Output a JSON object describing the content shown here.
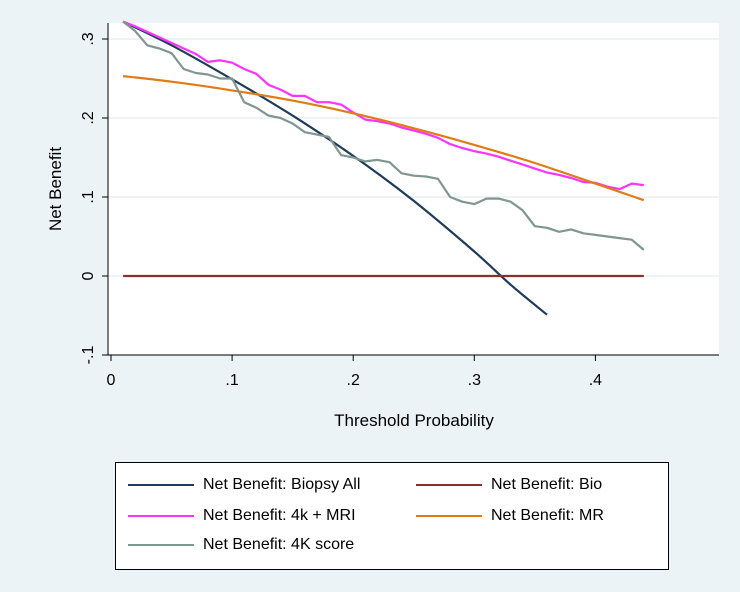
{
  "chart_data": {
    "type": "line",
    "title": "",
    "xlabel": "Threshold Probability",
    "ylabel": "Net Benefit",
    "xlim": [
      0,
      0.5
    ],
    "ylim": [
      -0.1,
      0.33
    ],
    "x_ticks": [
      0,
      0.1,
      0.2,
      0.3,
      0.4
    ],
    "x_tick_labels": [
      "0",
      ".1",
      ".2",
      ".3",
      ".4"
    ],
    "y_ticks": [
      -0.1,
      0,
      0.1,
      0.2,
      0.3
    ],
    "y_tick_labels": [
      "-.1",
      "0",
      ".1",
      ".2",
      ".3"
    ],
    "grid": "horizontal",
    "legend_position": "bottom",
    "series": [
      {
        "name": "Net Benefit: Biopsy All",
        "color": "#1f3b5a",
        "x": [
          0.01,
          0.05,
          0.1,
          0.15,
          0.2,
          0.25,
          0.3,
          0.33,
          0.36
        ],
        "y": [
          0.322,
          0.292,
          0.249,
          0.203,
          0.152,
          0.095,
          0.031,
          -0.011,
          -0.049
        ]
      },
      {
        "name": "Net Benefit: Bio",
        "color": "#8b2e2e",
        "x": [
          0.01,
          0.44
        ],
        "y": [
          0,
          0
        ]
      },
      {
        "name": "Net Benefit: 4k + MRI",
        "color": "#ff33ff",
        "x": [
          0.01,
          0.02,
          0.03,
          0.04,
          0.05,
          0.06,
          0.07,
          0.08,
          0.09,
          0.1,
          0.11,
          0.12,
          0.13,
          0.14,
          0.15,
          0.16,
          0.17,
          0.18,
          0.19,
          0.2,
          0.21,
          0.22,
          0.23,
          0.24,
          0.25,
          0.26,
          0.27,
          0.28,
          0.29,
          0.3,
          0.31,
          0.32,
          0.33,
          0.34,
          0.35,
          0.36,
          0.37,
          0.38,
          0.39,
          0.4,
          0.41,
          0.42,
          0.43,
          0.44
        ],
        "y": [
          0.322,
          0.316,
          0.309,
          0.302,
          0.295,
          0.288,
          0.281,
          0.271,
          0.273,
          0.27,
          0.262,
          0.256,
          0.242,
          0.236,
          0.228,
          0.228,
          0.22,
          0.22,
          0.217,
          0.207,
          0.198,
          0.196,
          0.193,
          0.188,
          0.184,
          0.18,
          0.175,
          0.167,
          0.162,
          0.158,
          0.155,
          0.151,
          0.146,
          0.141,
          0.136,
          0.131,
          0.128,
          0.124,
          0.119,
          0.118,
          0.113,
          0.11,
          0.117,
          0.115
        ]
      },
      {
        "name": "Net Benefit: MR",
        "color": "#e07b18",
        "x": [
          0.01,
          0.05,
          0.1,
          0.15,
          0.2,
          0.25,
          0.3,
          0.35,
          0.4,
          0.44
        ],
        "y": [
          0.253,
          0.246,
          0.235,
          0.222,
          0.206,
          0.187,
          0.166,
          0.143,
          0.117,
          0.096
        ]
      },
      {
        "name": "Net Benefit: 4K score",
        "color": "#7f9790",
        "x": [
          0.01,
          0.02,
          0.03,
          0.04,
          0.05,
          0.06,
          0.07,
          0.08,
          0.09,
          0.1,
          0.11,
          0.12,
          0.13,
          0.14,
          0.15,
          0.16,
          0.17,
          0.18,
          0.19,
          0.2,
          0.21,
          0.22,
          0.23,
          0.24,
          0.25,
          0.26,
          0.27,
          0.28,
          0.29,
          0.3,
          0.31,
          0.32,
          0.33,
          0.34,
          0.35,
          0.36,
          0.37,
          0.38,
          0.39,
          0.4,
          0.41,
          0.42,
          0.43,
          0.44
        ],
        "y": [
          0.322,
          0.31,
          0.292,
          0.288,
          0.282,
          0.262,
          0.257,
          0.255,
          0.25,
          0.25,
          0.22,
          0.213,
          0.203,
          0.2,
          0.193,
          0.182,
          0.179,
          0.176,
          0.153,
          0.15,
          0.145,
          0.147,
          0.144,
          0.13,
          0.127,
          0.126,
          0.123,
          0.1,
          0.094,
          0.091,
          0.098,
          0.098,
          0.094,
          0.083,
          0.063,
          0.061,
          0.056,
          0.059,
          0.054,
          0.052,
          0.05,
          0.048,
          0.046,
          0.033
        ]
      }
    ]
  }
}
